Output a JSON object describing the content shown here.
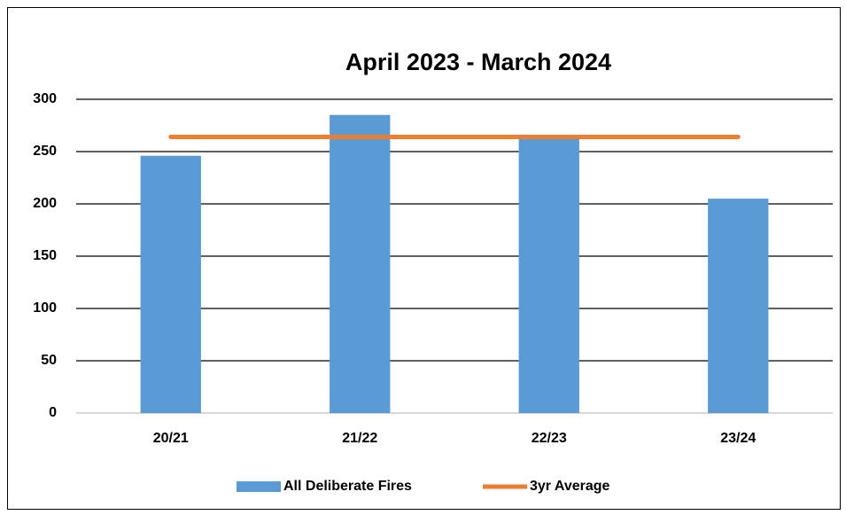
{
  "chart_data": {
    "type": "bar",
    "title": "April 2023 - March 2024",
    "categories": [
      "20/21",
      "21/22",
      "22/23",
      "23/24"
    ],
    "series": [
      {
        "name": "All Deliberate Fires",
        "type": "bar",
        "color": "#5b9bd5",
        "values": [
          246,
          285,
          264,
          205
        ]
      },
      {
        "name": "3yr Average",
        "type": "line",
        "color": "#ed7d31",
        "values": [
          264,
          264,
          264,
          264
        ]
      }
    ],
    "ylim": [
      0,
      300
    ],
    "yticks": [
      0,
      50,
      100,
      150,
      200,
      250,
      300
    ],
    "grid": true,
    "legend": "bottom"
  }
}
